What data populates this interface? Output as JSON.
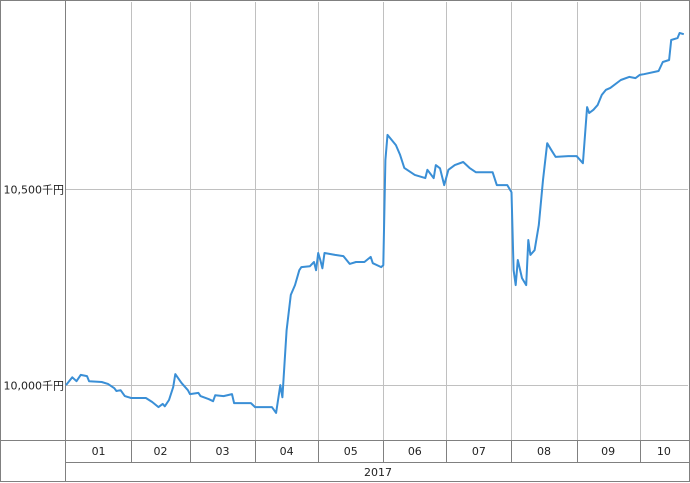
{
  "chart_data": {
    "type": "line",
    "title": "",
    "xlabel": "",
    "ylabel": "",
    "xlim": [
      "2017-01-01",
      "2017-10-24"
    ],
    "ylim": [
      9860,
      10977
    ],
    "grid": true,
    "y_ticks": [
      {
        "value": 10000,
        "label": "10,000千円"
      },
      {
        "value": 10500,
        "label": "10,500千円"
      }
    ],
    "month_labels": [
      "01",
      "02",
      "03",
      "04",
      "05",
      "06",
      "07",
      "08",
      "09",
      "10"
    ],
    "year_label": "2017",
    "colors": {
      "line": "#3a8fd6",
      "grid": "#c0c0c0",
      "frame": "#808080"
    },
    "series": [
      {
        "points": [
          [
            "2017-01-01",
            10000
          ],
          [
            "2017-01-04",
            10020
          ],
          [
            "2017-01-06",
            10010
          ],
          [
            "2017-01-08",
            10026
          ],
          [
            "2017-01-11",
            10023
          ],
          [
            "2017-01-12",
            10010
          ],
          [
            "2017-01-18",
            10008
          ],
          [
            "2017-01-21",
            10003
          ],
          [
            "2017-01-24",
            9992
          ],
          [
            "2017-01-25",
            9985
          ],
          [
            "2017-01-27",
            9987
          ],
          [
            "2017-01-29",
            9972
          ],
          [
            "2017-02-01",
            9967
          ],
          [
            "2017-02-08",
            9967
          ],
          [
            "2017-02-11",
            9957
          ],
          [
            "2017-02-14",
            9944
          ],
          [
            "2017-02-16",
            9952
          ],
          [
            "2017-02-17",
            9946
          ],
          [
            "2017-02-19",
            9962
          ],
          [
            "2017-02-21",
            9995
          ],
          [
            "2017-02-22",
            10028
          ],
          [
            "2017-02-25",
            10005
          ],
          [
            "2017-02-28",
            9987
          ],
          [
            "2017-03-01",
            9977
          ],
          [
            "2017-03-05",
            9980
          ],
          [
            "2017-03-06",
            9972
          ],
          [
            "2017-03-10",
            9964
          ],
          [
            "2017-03-12",
            9959
          ],
          [
            "2017-03-13",
            9974
          ],
          [
            "2017-03-17",
            9972
          ],
          [
            "2017-03-21",
            9977
          ],
          [
            "2017-03-22",
            9954
          ],
          [
            "2017-03-30",
            9954
          ],
          [
            "2017-04-01",
            9944
          ],
          [
            "2017-04-09",
            9944
          ],
          [
            "2017-04-11",
            9929
          ],
          [
            "2017-04-13",
            10000
          ],
          [
            "2017-04-14",
            9969
          ],
          [
            "2017-04-16",
            10140
          ],
          [
            "2017-04-18",
            10230
          ],
          [
            "2017-04-20",
            10255
          ],
          [
            "2017-04-22",
            10293
          ],
          [
            "2017-04-23",
            10301
          ],
          [
            "2017-04-27",
            10303
          ],
          [
            "2017-04-29",
            10314
          ],
          [
            "2017-04-30",
            10293
          ],
          [
            "2017-05-01",
            10337
          ],
          [
            "2017-05-02",
            10319
          ],
          [
            "2017-05-03",
            10298
          ],
          [
            "2017-05-04",
            10337
          ],
          [
            "2017-05-09",
            10332
          ],
          [
            "2017-05-13",
            10329
          ],
          [
            "2017-05-16",
            10309
          ],
          [
            "2017-05-19",
            10314
          ],
          [
            "2017-05-23",
            10314
          ],
          [
            "2017-05-26",
            10327
          ],
          [
            "2017-05-27",
            10311
          ],
          [
            "2017-05-31",
            10301
          ],
          [
            "2017-06-01",
            10306
          ],
          [
            "2017-06-02",
            10574
          ],
          [
            "2017-06-03",
            10638
          ],
          [
            "2017-06-07",
            10612
          ],
          [
            "2017-06-09",
            10587
          ],
          [
            "2017-06-11",
            10554
          ],
          [
            "2017-06-16",
            10536
          ],
          [
            "2017-06-21",
            10528
          ],
          [
            "2017-06-22",
            10549
          ],
          [
            "2017-06-25",
            10528
          ],
          [
            "2017-06-26",
            10561
          ],
          [
            "2017-06-28",
            10553
          ],
          [
            "2017-06-30",
            10510
          ],
          [
            "2017-07-02",
            10549
          ],
          [
            "2017-07-05",
            10561
          ],
          [
            "2017-07-09",
            10569
          ],
          [
            "2017-07-12",
            10554
          ],
          [
            "2017-07-15",
            10543
          ],
          [
            "2017-07-23",
            10543
          ],
          [
            "2017-07-25",
            10510
          ],
          [
            "2017-07-30",
            10510
          ],
          [
            "2017-08-01",
            10492
          ],
          [
            "2017-08-02",
            10293
          ],
          [
            "2017-08-03",
            10255
          ],
          [
            "2017-08-04",
            10319
          ],
          [
            "2017-08-06",
            10273
          ],
          [
            "2017-08-08",
            10255
          ],
          [
            "2017-08-09",
            10370
          ],
          [
            "2017-08-10",
            10332
          ],
          [
            "2017-08-12",
            10344
          ],
          [
            "2017-08-14",
            10408
          ],
          [
            "2017-08-16",
            10523
          ],
          [
            "2017-08-18",
            10617
          ],
          [
            "2017-08-20",
            10599
          ],
          [
            "2017-08-22",
            10582
          ],
          [
            "2017-08-28",
            10584
          ],
          [
            "2017-09-01",
            10584
          ],
          [
            "2017-09-04",
            10566
          ],
          [
            "2017-09-06",
            10709
          ],
          [
            "2017-09-07",
            10694
          ],
          [
            "2017-09-09",
            10702
          ],
          [
            "2017-09-11",
            10714
          ],
          [
            "2017-09-13",
            10740
          ],
          [
            "2017-09-15",
            10753
          ],
          [
            "2017-09-17",
            10758
          ],
          [
            "2017-09-22",
            10778
          ],
          [
            "2017-09-26",
            10786
          ],
          [
            "2017-09-29",
            10783
          ],
          [
            "2017-10-01",
            10791
          ],
          [
            "2017-10-03",
            10793
          ],
          [
            "2017-10-10",
            10801
          ],
          [
            "2017-10-12",
            10824
          ],
          [
            "2017-10-15",
            10829
          ],
          [
            "2017-10-16",
            10880
          ],
          [
            "2017-10-19",
            10885
          ],
          [
            "2017-10-20",
            10898
          ],
          [
            "2017-10-22",
            10895
          ]
        ]
      }
    ]
  }
}
